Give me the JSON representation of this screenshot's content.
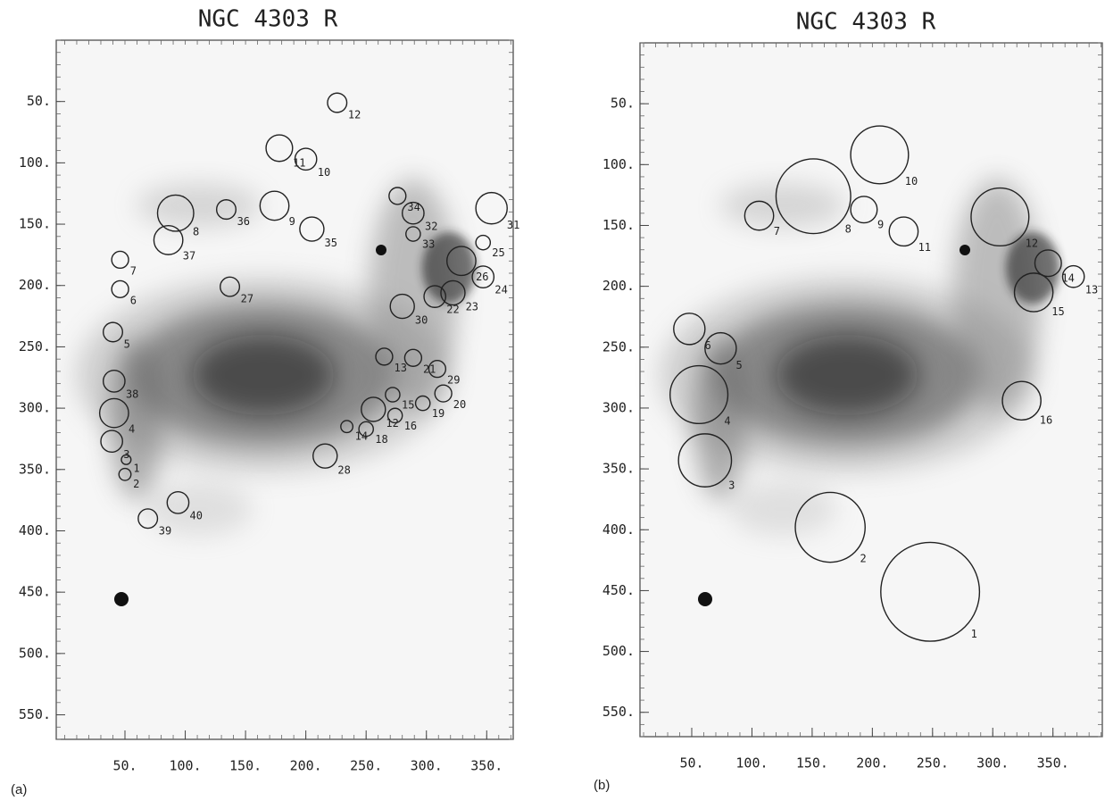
{
  "chart_data": [
    {
      "type": "scatter",
      "title": "NGC 4303 R",
      "panel_label": "(a)",
      "xlim": [
        -7,
        372
      ],
      "ylim": [
        0,
        570
      ],
      "yreversed": true,
      "xticks": [
        {
          "value": 50,
          "label": "50."
        },
        {
          "value": 100,
          "label": "100."
        },
        {
          "value": 150,
          "label": "150."
        },
        {
          "value": 200,
          "label": "200."
        },
        {
          "value": 250,
          "label": "250."
        },
        {
          "value": 300,
          "label": "300."
        },
        {
          "value": 350,
          "label": "350."
        }
      ],
      "yticks": [
        {
          "value": 50,
          "label": "50."
        },
        {
          "value": 100,
          "label": "100."
        },
        {
          "value": 150,
          "label": "150."
        },
        {
          "value": 200,
          "label": "200."
        },
        {
          "value": 250,
          "label": "250."
        },
        {
          "value": 300,
          "label": "300."
        },
        {
          "value": 350,
          "label": "350."
        },
        {
          "value": 400,
          "label": "400."
        },
        {
          "value": 450,
          "label": "450."
        },
        {
          "value": 500,
          "label": "500."
        },
        {
          "value": 550,
          "label": "550."
        }
      ],
      "color": "#222222",
      "labels": [
        "1",
        "2",
        "3",
        "4",
        "38",
        "5",
        "6",
        "7",
        "8",
        "37",
        "36",
        "9",
        "27",
        "11",
        "10",
        "12",
        "35",
        "34",
        "32",
        "33",
        "31",
        "25",
        "26",
        "24",
        "22",
        "23",
        "30",
        "21",
        "13",
        "29",
        "15",
        "12",
        "20",
        "19",
        "16",
        "14",
        "18",
        "28",
        "40",
        "39"
      ],
      "x": [
        51,
        50,
        39,
        41,
        41,
        40,
        46,
        46,
        92,
        86,
        134,
        174,
        137,
        178,
        200,
        226,
        205,
        276,
        289,
        289,
        354,
        347,
        329,
        347,
        307,
        322,
        280,
        289,
        265,
        309,
        272,
        256,
        314,
        297,
        274,
        234,
        250,
        216,
        94,
        69
      ],
      "values": [
        342,
        354,
        327,
        304,
        278,
        238,
        203,
        179,
        141,
        163,
        138,
        135,
        201,
        88,
        97,
        51,
        154,
        127,
        141,
        158,
        137,
        165,
        180,
        193,
        209,
        206,
        217,
        259,
        258,
        268,
        289,
        301,
        288,
        296,
        306,
        315,
        317,
        339,
        377,
        390
      ],
      "sizes": [
        4,
        5,
        9,
        12,
        9,
        8,
        7,
        7,
        15,
        12,
        8,
        12,
        8,
        11,
        9,
        8,
        10,
        7,
        9,
        6,
        13,
        6,
        12,
        9,
        9,
        10,
        10,
        7,
        7,
        7,
        6,
        10,
        7,
        6,
        6,
        5,
        6,
        10,
        9,
        8
      ]
    },
    {
      "type": "scatter",
      "title": "NGC 4303 R",
      "panel_label": "(b)",
      "xlim": [
        7,
        391
      ],
      "ylim": [
        0,
        570
      ],
      "yreversed": true,
      "xticks": [
        {
          "value": 50,
          "label": "50."
        },
        {
          "value": 100,
          "label": "100."
        },
        {
          "value": 150,
          "label": "150."
        },
        {
          "value": 200,
          "label": "200."
        },
        {
          "value": 250,
          "label": "250."
        },
        {
          "value": 300,
          "label": "300."
        },
        {
          "value": 350,
          "label": "350."
        }
      ],
      "yticks": [
        {
          "value": 50,
          "label": "50."
        },
        {
          "value": 100,
          "label": "100."
        },
        {
          "value": 150,
          "label": "150."
        },
        {
          "value": 200,
          "label": "200."
        },
        {
          "value": 250,
          "label": "250."
        },
        {
          "value": 300,
          "label": "300."
        },
        {
          "value": 350,
          "label": "350."
        },
        {
          "value": 400,
          "label": "400."
        },
        {
          "value": 450,
          "label": "450."
        },
        {
          "value": 500,
          "label": "500."
        },
        {
          "value": 550,
          "label": "550."
        }
      ],
      "color": "#222222",
      "labels": [
        "1",
        "2",
        "3",
        "4",
        "5",
        "6",
        "7",
        "8",
        "9",
        "10",
        "11",
        "12",
        "13",
        "14",
        "15",
        "16"
      ],
      "x": [
        248,
        165,
        61,
        56,
        74,
        48,
        106,
        151,
        193,
        206,
        226,
        306,
        367,
        346,
        334,
        324
      ],
      "values": [
        451,
        398,
        343,
        289,
        251,
        235,
        142,
        126,
        137,
        92,
        155,
        143,
        192,
        181,
        205,
        294
      ],
      "sizes": [
        41,
        29,
        22,
        24,
        13,
        13,
        12,
        31,
        11,
        24,
        12,
        24,
        9,
        11,
        16,
        16
      ]
    }
  ]
}
